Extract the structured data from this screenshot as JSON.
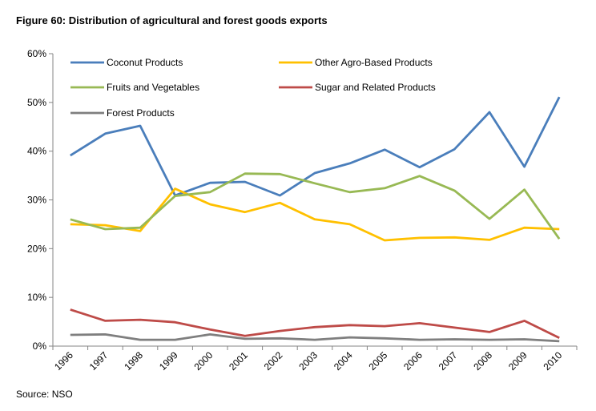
{
  "chart_data": {
    "type": "line",
    "title": "Figure 60: Distribution of agricultural and forest goods exports",
    "source": "Source: NSO",
    "xlabel": "",
    "ylabel": "",
    "categories": [
      "1996",
      "1997",
      "1998",
      "1999",
      "2000",
      "2001",
      "2002",
      "2003",
      "2004",
      "2005",
      "2006",
      "2007",
      "2008",
      "2009",
      "2010"
    ],
    "ylim": [
      0,
      60
    ],
    "yticks": [
      0,
      10,
      20,
      30,
      40,
      50,
      60
    ],
    "ytick_labels": [
      "0%",
      "10%",
      "20%",
      "30%",
      "40%",
      "50%",
      "60%"
    ],
    "grid": false,
    "legend_position": "top",
    "series": [
      {
        "name": "Coconut Products",
        "color": "#4a7ebb",
        "values": [
          39.1,
          43.6,
          45.2,
          30.9,
          33.5,
          33.7,
          30.9,
          35.5,
          37.5,
          40.3,
          36.7,
          40.4,
          48.0,
          36.8,
          51.1
        ]
      },
      {
        "name": "Other Agro-Based Products",
        "color": "#ffc000",
        "values": [
          25.0,
          24.8,
          23.6,
          32.3,
          29.1,
          27.5,
          29.4,
          26.0,
          25.0,
          21.7,
          22.2,
          22.3,
          21.8,
          24.3,
          24.0
        ]
      },
      {
        "name": "Fruits and Vegetables",
        "color": "#98b954",
        "values": [
          26.0,
          24.0,
          24.3,
          30.8,
          31.6,
          35.4,
          35.3,
          33.4,
          31.6,
          32.4,
          34.9,
          31.9,
          26.1,
          32.1,
          22.0
        ]
      },
      {
        "name": "Sugar and Related Products",
        "color": "#be4b48",
        "values": [
          7.5,
          5.2,
          5.4,
          4.9,
          3.4,
          2.1,
          3.1,
          3.9,
          4.3,
          4.1,
          4.7,
          3.8,
          2.9,
          5.2,
          1.7
        ]
      },
      {
        "name": "Forest Products",
        "color": "#7f7f7f",
        "values": [
          2.3,
          2.4,
          1.3,
          1.3,
          2.4,
          1.5,
          1.6,
          1.3,
          1.8,
          1.6,
          1.3,
          1.4,
          1.3,
          1.4,
          1.0
        ]
      }
    ]
  }
}
